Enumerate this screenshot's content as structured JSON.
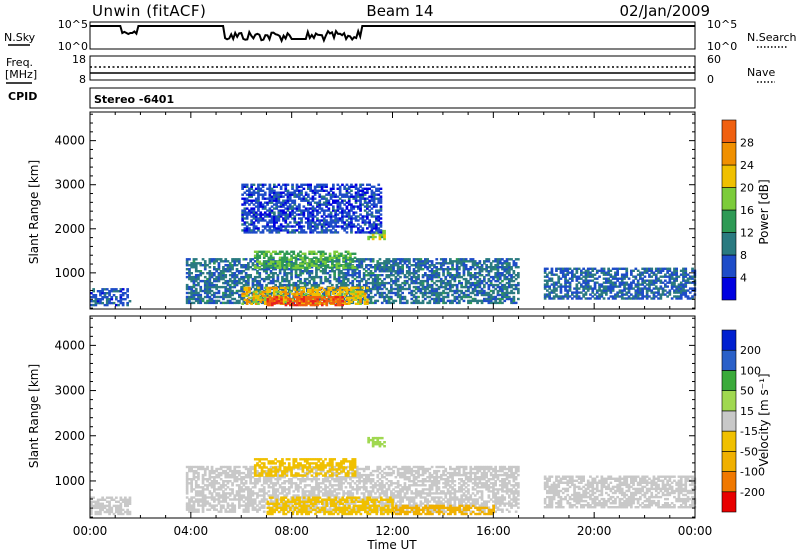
{
  "header": {
    "station": "Unwin (fitACF)",
    "beam": "Beam 14",
    "date": "02/Jan/2009"
  },
  "sky_panel": {
    "left_label": "N.Sky",
    "right_label": "N.Search",
    "ticks_left": [
      "10^5",
      "10^0"
    ],
    "ticks_right": [
      "10^5",
      "10^0"
    ]
  },
  "freq_panel": {
    "left_label_1": "Freq.",
    "left_label_2": "[MHz]",
    "right_label": "Nave",
    "ticks_left": [
      "18",
      "8"
    ],
    "ticks_right": [
      "60",
      "0"
    ]
  },
  "cpid": {
    "label": "CPID",
    "value": "Stereo -6401"
  },
  "colors": {
    "power_scale": [
      "#0000e0",
      "#1e4cc8",
      "#2a7a80",
      "#2e9a55",
      "#7ccc3a",
      "#f0c000",
      "#f09000",
      "#f06010",
      "#e82020"
    ],
    "velocity_scale": [
      "#e80000",
      "#f07800",
      "#f0b000",
      "#f0c000",
      "#c8c8c8",
      "#a0d850",
      "#3aaa3a",
      "#2a60c8",
      "#0020d0"
    ]
  },
  "chart_data": [
    {
      "type": "heatmap",
      "name": "power",
      "xlabel": "",
      "ylabel": "Slant Range [km]",
      "xlim": [
        0,
        24
      ],
      "ylim": [
        180,
        4650
      ],
      "y_ticks": [
        "1000",
        "2000",
        "3000",
        "4000"
      ],
      "colorbar": {
        "label": "Power [dB]",
        "ticks": [
          "4",
          "8",
          "12",
          "16",
          "20",
          "24",
          "28"
        ],
        "range": [
          0,
          32
        ]
      },
      "echo_regions": [
        {
          "t_start": 0.0,
          "t_end": 1.6,
          "range_min": 250,
          "range_max": 650,
          "power": 6
        },
        {
          "t_start": 3.8,
          "t_end": 17.0,
          "range_min": 300,
          "range_max": 1300,
          "power": 8
        },
        {
          "t_start": 6.0,
          "t_end": 11.0,
          "range_min": 280,
          "range_max": 650,
          "power": 20
        },
        {
          "t_start": 7.0,
          "t_end": 10.0,
          "range_min": 250,
          "range_max": 450,
          "power": 28
        },
        {
          "t_start": 6.5,
          "t_end": 10.5,
          "range_min": 1100,
          "range_max": 1500,
          "power": 14
        },
        {
          "t_start": 18.0,
          "t_end": 24.0,
          "range_min": 400,
          "range_max": 1100,
          "power": 7
        },
        {
          "t_start": 11.0,
          "t_end": 11.7,
          "range_min": 1750,
          "range_max": 1950,
          "power": 16
        },
        {
          "t_start": 6.0,
          "t_end": 11.5,
          "range_min": 1900,
          "range_max": 3000,
          "power": 5
        }
      ]
    },
    {
      "type": "heatmap",
      "name": "velocity",
      "xlabel": "Time UT",
      "ylabel": "Slant Range [km]",
      "xlim": [
        0,
        24
      ],
      "x_ticks": [
        "00:00",
        "04:00",
        "08:00",
        "12:00",
        "16:00",
        "20:00",
        "00:00"
      ],
      "ylim": [
        180,
        4650
      ],
      "y_ticks": [
        "1000",
        "2000",
        "3000",
        "4000"
      ],
      "colorbar": {
        "label": "Velocity [m s⁻¹]",
        "ticks": [
          "-200",
          "-100",
          "-50",
          "-15",
          "15",
          "50",
          "100",
          "200"
        ],
        "range": [
          -250,
          250
        ]
      },
      "echo_regions": [
        {
          "t_start": 0.0,
          "t_end": 1.6,
          "range_min": 250,
          "range_max": 650,
          "velocity": 0
        },
        {
          "t_start": 3.8,
          "t_end": 17.0,
          "range_min": 300,
          "range_max": 1300,
          "velocity": 0
        },
        {
          "t_start": 6.5,
          "t_end": 10.5,
          "range_min": 1100,
          "range_max": 1500,
          "velocity": -40
        },
        {
          "t_start": 7.0,
          "t_end": 12.0,
          "range_min": 250,
          "range_max": 650,
          "velocity": -40
        },
        {
          "t_start": 12.0,
          "t_end": 16.0,
          "range_min": 250,
          "range_max": 450,
          "velocity": -60
        },
        {
          "t_start": 18.0,
          "t_end": 24.0,
          "range_min": 400,
          "range_max": 1100,
          "velocity": 0
        },
        {
          "t_start": 11.0,
          "t_end": 11.7,
          "range_min": 1750,
          "range_max": 1950,
          "velocity": 40
        }
      ]
    }
  ]
}
